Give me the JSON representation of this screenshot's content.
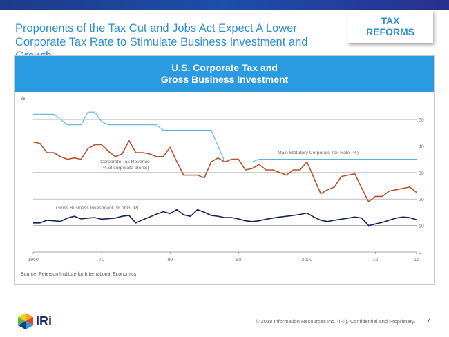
{
  "slide": {
    "title": "Proponents of the Tax Cut and Jobs Act Expect A Lower Corporate Tax Rate to Stimulate Business Investment and Growth",
    "tag_line1": "TAX",
    "tag_line2": "REFORMS",
    "chart_heading_line1": "U.S. Corporate Tax and",
    "chart_heading_line2": "Gross Business Investment",
    "source": "Source: Peterson Institute for International Economics",
    "logo_text": "IRi",
    "copyright": "© 2018 Information Resources Inc. (IRI). Confidential and Proprietary.",
    "page_number": "7"
  },
  "colors": {
    "brand_blue": "#2d8fd5",
    "header_blue": "#2a9be0",
    "statutory_rate_line": "#59b4df",
    "tax_revenue_line": "#b5532d",
    "investment_line": "#13235b"
  },
  "chart_data": {
    "type": "line",
    "ylabel": "%",
    "ylim": [
      0,
      50
    ],
    "yticks": [
      0,
      10,
      20,
      30,
      40,
      50
    ],
    "xlim": [
      1960,
      2016
    ],
    "xticks": [
      1960,
      1970,
      1980,
      1990,
      2000,
      2010,
      2016
    ],
    "xtick_labels": [
      "1960",
      "70",
      "80",
      "90",
      "2000",
      "10",
      "16"
    ],
    "grid": "horizontal",
    "series": [
      {
        "name": "Main Statutory Corporate Tax Rate (%)",
        "label_lines": [
          "Main Statutory Corporate Tax Rate (%)"
        ],
        "color": "#59b4df",
        "x": [
          1960,
          1963,
          1964,
          1965,
          1967,
          1968,
          1969,
          1970,
          1971,
          1972,
          1978,
          1979,
          1986,
          1987,
          1988,
          1992,
          1993,
          2016
        ],
        "y": [
          52,
          52,
          50,
          48,
          48,
          52.8,
          52.8,
          49.2,
          48,
          48,
          48,
          46,
          46,
          40,
          34,
          34,
          35,
          35
        ]
      },
      {
        "name": "Corporate Tax Revenue (% of corporate profits)",
        "label_lines": [
          "Corporate Tax Revenue",
          "(% of corporate profits)"
        ],
        "color": "#b5532d",
        "x": [
          1960,
          1961,
          1962,
          1963,
          1964,
          1965,
          1966,
          1967,
          1968,
          1969,
          1970,
          1971,
          1972,
          1973,
          1974,
          1975,
          1976,
          1977,
          1978,
          1979,
          1980,
          1981,
          1982,
          1983,
          1984,
          1985,
          1986,
          1987,
          1988,
          1989,
          1990,
          1991,
          1992,
          1993,
          1994,
          1995,
          1996,
          1997,
          1998,
          1999,
          2000,
          2001,
          2002,
          2003,
          2004,
          2005,
          2006,
          2007,
          2008,
          2009,
          2010,
          2011,
          2012,
          2013,
          2014,
          2015,
          2016
        ],
        "y": [
          41.5,
          41,
          37.5,
          37.5,
          36,
          35,
          35.5,
          35,
          39,
          40.5,
          40.5,
          38,
          36,
          37,
          42,
          37.5,
          37.5,
          37,
          36,
          36,
          39.5,
          34,
          29,
          29,
          29,
          28,
          34,
          35.5,
          34,
          35,
          35,
          31,
          31.5,
          33,
          31,
          31,
          30,
          29,
          31,
          31,
          34,
          28,
          22,
          23.5,
          24.5,
          28.5,
          29,
          29.5,
          24,
          19,
          21,
          21,
          23,
          23.5,
          24,
          24.5,
          22.5
        ]
      },
      {
        "name": "Gross Business Investment (% of GDP)",
        "label_lines": [
          "Gross Business Investment (% of GDP)"
        ],
        "color": "#13235b",
        "x": [
          1960,
          1961,
          1962,
          1963,
          1964,
          1965,
          1966,
          1967,
          1968,
          1969,
          1970,
          1971,
          1972,
          1973,
          1974,
          1975,
          1976,
          1977,
          1978,
          1979,
          1980,
          1981,
          1982,
          1983,
          1984,
          1985,
          1986,
          1987,
          1988,
          1989,
          1990,
          1991,
          1992,
          1993,
          1994,
          1995,
          1996,
          1997,
          1998,
          1999,
          2000,
          2001,
          2002,
          2003,
          2004,
          2005,
          2006,
          2007,
          2008,
          2009,
          2010,
          2011,
          2012,
          2013,
          2014,
          2015,
          2016
        ],
        "y": [
          11,
          11,
          12,
          11.8,
          11.6,
          12.8,
          13.5,
          12.5,
          12.8,
          13,
          12.4,
          12.6,
          12.8,
          13.5,
          13.8,
          11,
          12.2,
          13.2,
          14.3,
          15.2,
          14.5,
          16,
          14,
          13.5,
          16,
          15,
          13.8,
          13.5,
          13,
          13,
          12.5,
          11.8,
          11.5,
          11.8,
          12.4,
          12.8,
          13.2,
          13.5,
          13.8,
          14.2,
          14.7,
          13.2,
          12,
          11.5,
          12,
          12.4,
          12.8,
          13.2,
          12.8,
          10,
          10.6,
          11.2,
          12,
          12.8,
          13.2,
          13,
          12.2
        ]
      }
    ]
  }
}
